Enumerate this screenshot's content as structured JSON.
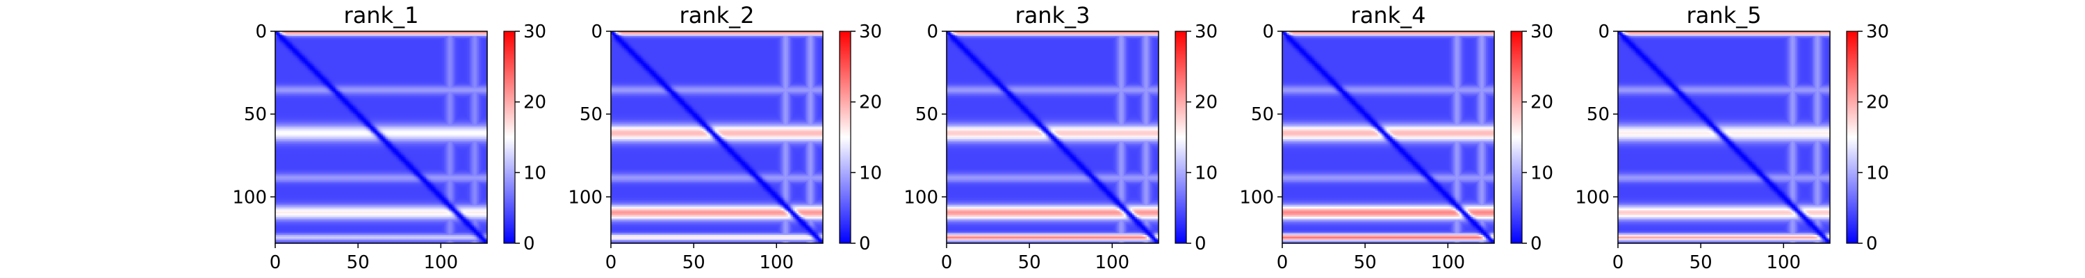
{
  "figure": {
    "colorscale": {
      "low": "#0000ff",
      "mid": "#ffffff",
      "high": "#ff0000"
    }
  },
  "chart_data": [
    {
      "type": "heatmap",
      "title": "rank_1",
      "n": 128,
      "xlim": [
        0,
        128
      ],
      "ylim": [
        128,
        0
      ],
      "xticks": [
        0,
        50,
        100
      ],
      "yticks": [
        0,
        50,
        100
      ],
      "colorbar": {
        "min": 0,
        "max": 30,
        "ticks": [
          0,
          10,
          20,
          30
        ]
      },
      "background_value": 4,
      "diagonal_value": 0,
      "bands": [
        {
          "axis": "y",
          "center": 0,
          "width": 1.5,
          "value": 22
        },
        {
          "axis": "y",
          "center": 35,
          "width": 2,
          "value": 9
        },
        {
          "axis": "y",
          "center": 61,
          "width": 3.5,
          "value": 15
        },
        {
          "axis": "y",
          "center": 88,
          "width": 2,
          "value": 9
        },
        {
          "axis": "y",
          "center": 109,
          "width": 3,
          "value": 16
        },
        {
          "axis": "y",
          "center": 124,
          "width": 1.5,
          "value": 12
        },
        {
          "axis": "x",
          "center": 105,
          "width": 2,
          "value": 8
        },
        {
          "axis": "x",
          "center": 120,
          "width": 2,
          "value": 8
        }
      ]
    },
    {
      "type": "heatmap",
      "title": "rank_2",
      "n": 128,
      "xlim": [
        0,
        128
      ],
      "ylim": [
        128,
        0
      ],
      "xticks": [
        0,
        50,
        100
      ],
      "yticks": [
        0,
        50,
        100
      ],
      "colorbar": {
        "min": 0,
        "max": 30,
        "ticks": [
          0,
          10,
          20,
          30
        ]
      },
      "background_value": 4,
      "diagonal_value": 0,
      "bands": [
        {
          "axis": "y",
          "center": 0,
          "width": 1.5,
          "value": 22
        },
        {
          "axis": "y",
          "center": 35,
          "width": 2,
          "value": 9
        },
        {
          "axis": "y",
          "center": 61,
          "width": 3.5,
          "value": 19
        },
        {
          "axis": "y",
          "center": 88,
          "width": 2,
          "value": 9
        },
        {
          "axis": "y",
          "center": 109,
          "width": 3,
          "value": 21
        },
        {
          "axis": "y",
          "center": 124,
          "width": 1.5,
          "value": 16
        },
        {
          "axis": "x",
          "center": 105,
          "width": 2,
          "value": 9
        },
        {
          "axis": "x",
          "center": 120,
          "width": 2,
          "value": 9
        }
      ]
    },
    {
      "type": "heatmap",
      "title": "rank_3",
      "n": 128,
      "xlim": [
        0,
        128
      ],
      "ylim": [
        128,
        0
      ],
      "xticks": [
        0,
        50,
        100
      ],
      "yticks": [
        0,
        50,
        100
      ],
      "colorbar": {
        "min": 0,
        "max": 30,
        "ticks": [
          0,
          10,
          20,
          30
        ]
      },
      "background_value": 4,
      "diagonal_value": 0,
      "bands": [
        {
          "axis": "y",
          "center": 0,
          "width": 1.5,
          "value": 22
        },
        {
          "axis": "y",
          "center": 35,
          "width": 2,
          "value": 9
        },
        {
          "axis": "y",
          "center": 61,
          "width": 3.5,
          "value": 18
        },
        {
          "axis": "y",
          "center": 88,
          "width": 2,
          "value": 9
        },
        {
          "axis": "y",
          "center": 109,
          "width": 3,
          "value": 21
        },
        {
          "axis": "y",
          "center": 124,
          "width": 1.5,
          "value": 22
        },
        {
          "axis": "x",
          "center": 105,
          "width": 2,
          "value": 9
        },
        {
          "axis": "x",
          "center": 120,
          "width": 2,
          "value": 9
        }
      ]
    },
    {
      "type": "heatmap",
      "title": "rank_4",
      "n": 128,
      "xlim": [
        0,
        128
      ],
      "ylim": [
        128,
        0
      ],
      "xticks": [
        0,
        50,
        100
      ],
      "yticks": [
        0,
        50,
        100
      ],
      "colorbar": {
        "min": 0,
        "max": 30,
        "ticks": [
          0,
          10,
          20,
          30
        ]
      },
      "background_value": 4,
      "diagonal_value": 0,
      "bands": [
        {
          "axis": "y",
          "center": 0,
          "width": 1.5,
          "value": 22
        },
        {
          "axis": "y",
          "center": 35,
          "width": 2,
          "value": 9
        },
        {
          "axis": "y",
          "center": 61,
          "width": 3.5,
          "value": 19
        },
        {
          "axis": "y",
          "center": 88,
          "width": 2,
          "value": 9
        },
        {
          "axis": "y",
          "center": 109,
          "width": 3,
          "value": 22
        },
        {
          "axis": "y",
          "center": 124,
          "width": 1.5,
          "value": 23
        },
        {
          "axis": "x",
          "center": 105,
          "width": 2,
          "value": 9
        },
        {
          "axis": "x",
          "center": 120,
          "width": 2,
          "value": 9
        }
      ]
    },
    {
      "type": "heatmap",
      "title": "rank_5",
      "n": 128,
      "xlim": [
        0,
        128
      ],
      "ylim": [
        128,
        0
      ],
      "xticks": [
        0,
        50,
        100
      ],
      "yticks": [
        0,
        50,
        100
      ],
      "colorbar": {
        "min": 0,
        "max": 30,
        "ticks": [
          0,
          10,
          20,
          30
        ]
      },
      "background_value": 4,
      "diagonal_value": 0,
      "bands": [
        {
          "axis": "y",
          "center": 0,
          "width": 1.5,
          "value": 22
        },
        {
          "axis": "y",
          "center": 35,
          "width": 2,
          "value": 9
        },
        {
          "axis": "y",
          "center": 61,
          "width": 3.5,
          "value": 16
        },
        {
          "axis": "y",
          "center": 88,
          "width": 2,
          "value": 9
        },
        {
          "axis": "y",
          "center": 109,
          "width": 3,
          "value": 18
        },
        {
          "axis": "y",
          "center": 124,
          "width": 1.5,
          "value": 20
        },
        {
          "axis": "x",
          "center": 105,
          "width": 2,
          "value": 9
        },
        {
          "axis": "x",
          "center": 120,
          "width": 2,
          "value": 9
        }
      ]
    }
  ]
}
